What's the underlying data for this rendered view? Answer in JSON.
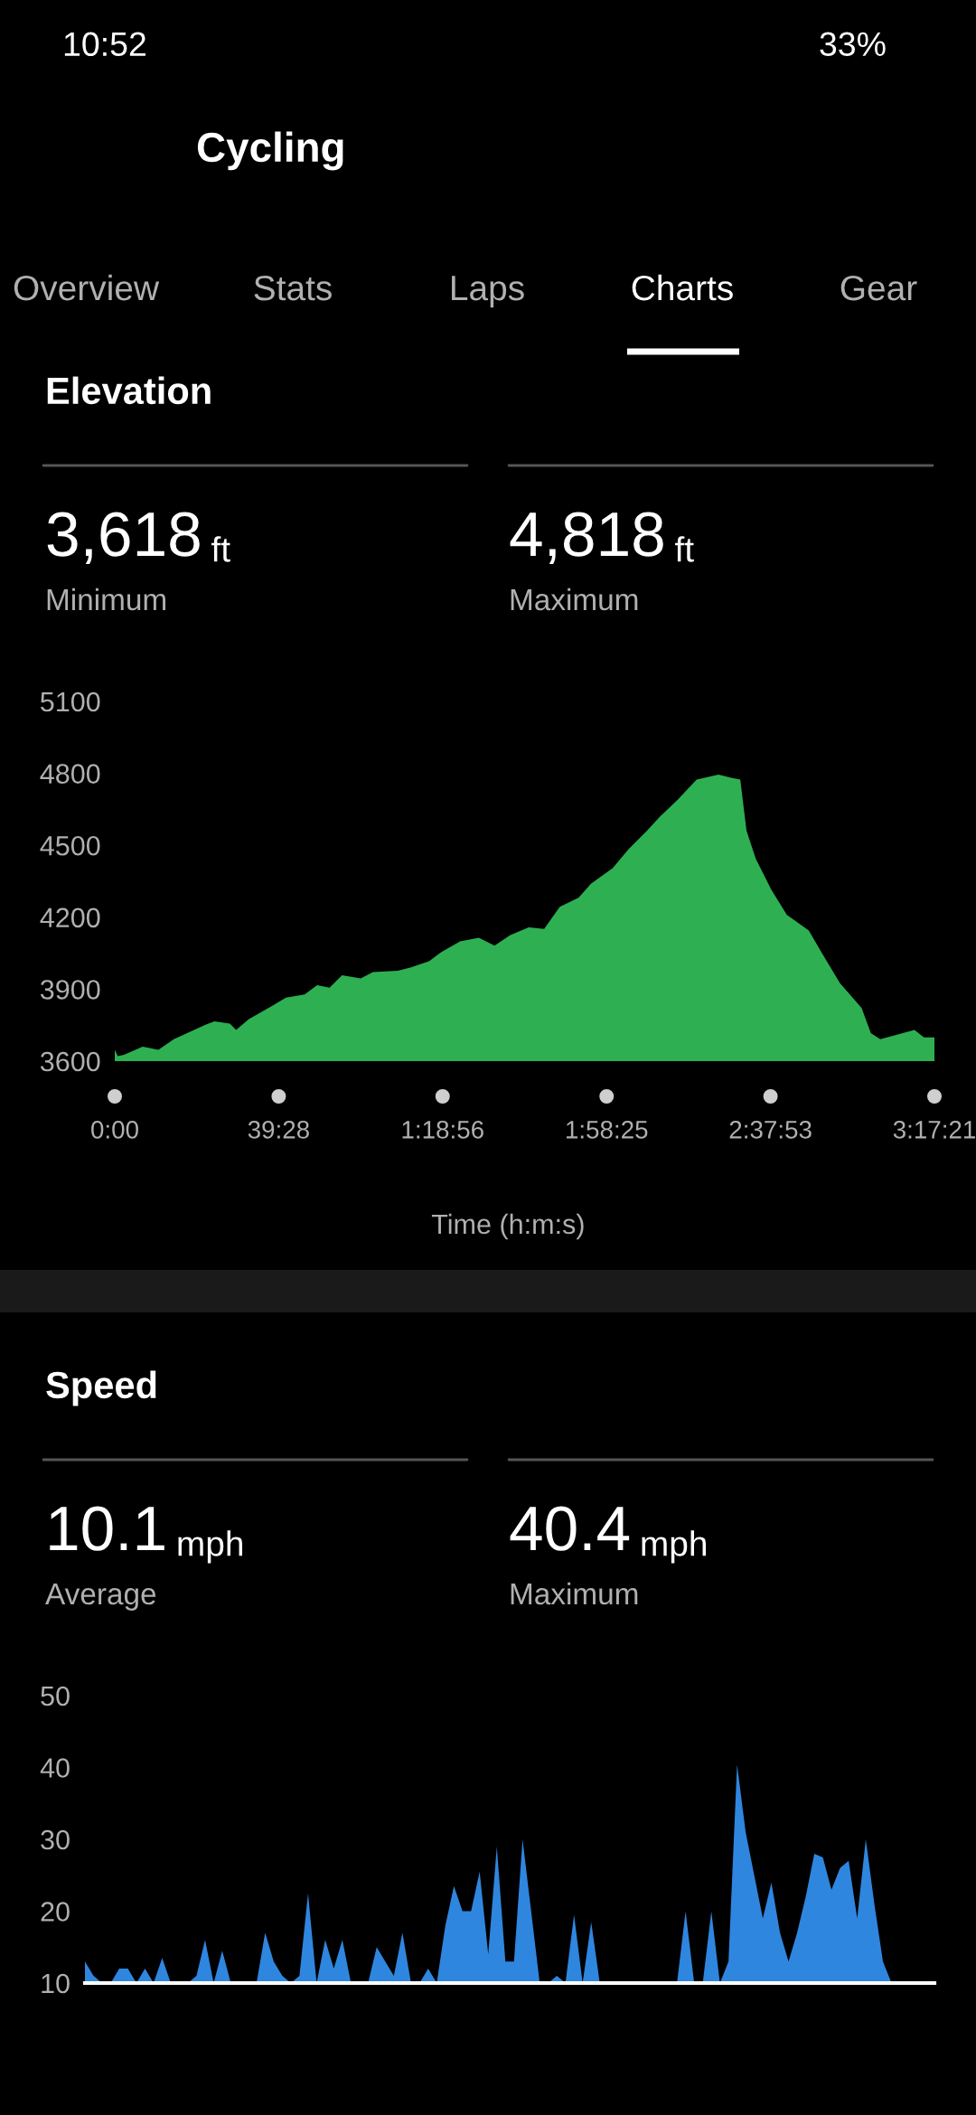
{
  "chart_data": [
    {
      "type": "other",
      "annotations": [
        "10:52",
        "33%",
        "Cycling",
        "Overview",
        "Stats",
        "Laps",
        "Charts",
        "Gear"
      ]
    },
    {
      "type": "area",
      "title": "Elevation",
      "annotations": [
        "3,618 ft",
        "Minimum",
        "4,818 ft",
        "Maximum"
      ],
      "xlabel": "Time (h:m:s)",
      "color": "#2eb052",
      "x": [
        0,
        0.72,
        2.22,
        6.72,
        10.5,
        14.22,
        21.72,
        24,
        27.72,
        29.22,
        32.22,
        38.22,
        41.22,
        45.72,
        48.72,
        51.72,
        54.72,
        59.22,
        62.16,
        68.16,
        71.16,
        75.66,
        78.66,
        83.16,
        87.66,
        91.44,
        95.16,
        99.66,
        103.38,
        107.16,
        111.66,
        114.66,
        119.88,
        123.66,
        128.16,
        131.16,
        135.6,
        140.1,
        145.38,
        148.38,
        150.6,
        152.1,
        154.32,
        158.1,
        161.82,
        167.1,
        170.1,
        174.6,
        179.82,
        182.04,
        184.32,
        192.54,
        194.82,
        197.35
      ],
      "values": [
        3647,
        3621,
        3626,
        3660,
        3647,
        3691,
        3751,
        3766,
        3756,
        3730,
        3774,
        3834,
        3865,
        3878,
        3917,
        3906,
        3958,
        3945,
        3971,
        3977,
        3990,
        4016,
        4055,
        4099,
        4114,
        4081,
        4125,
        4158,
        4151,
        4244,
        4281,
        4340,
        4405,
        4483,
        4561,
        4618,
        4691,
        4774,
        4795,
        4782,
        4774,
        4561,
        4444,
        4314,
        4210,
        4145,
        4055,
        3925,
        3821,
        3717,
        3691,
        3730,
        3699,
        3699
      ],
      "xlim": [
        0,
        197.35
      ],
      "xticks": [
        {
          "value": 0,
          "label": "0:00"
        },
        {
          "value": 39.467,
          "label": "39:28"
        },
        {
          "value": 78.933,
          "label": "1:18:56"
        },
        {
          "value": 118.417,
          "label": "1:58:25"
        },
        {
          "value": 157.883,
          "label": "2:37:53"
        },
        {
          "value": 197.35,
          "label": "3:17:21"
        }
      ],
      "ylim": [
        3600,
        5100
      ],
      "yticks": [
        3600,
        3900,
        4200,
        4500,
        4800,
        5100
      ]
    },
    {
      "type": "area",
      "title": "Speed",
      "annotations": [
        "10.1 mph",
        "Average",
        "40.4 mph",
        "Maximum"
      ],
      "color": "#2f86df",
      "categories": [
        null,
        null,
        null,
        null,
        null,
        null,
        null,
        null,
        null,
        null,
        null,
        null,
        null,
        null,
        null,
        null,
        null,
        null,
        null,
        null,
        null,
        null,
        null,
        null,
        null,
        null,
        null,
        null,
        null,
        null,
        null,
        null,
        null,
        null,
        null,
        null,
        null,
        null,
        null,
        null,
        null,
        null,
        null,
        null,
        null,
        null,
        null,
        null,
        null,
        null,
        null,
        null,
        null,
        null,
        null,
        null,
        null,
        null,
        null,
        null,
        null,
        null,
        null,
        null,
        null,
        null,
        null,
        null,
        null,
        null,
        null,
        null,
        null,
        null,
        null,
        null,
        null,
        null,
        null,
        null,
        null,
        null,
        null,
        null,
        null,
        null,
        null,
        null,
        null,
        null,
        null,
        null,
        null,
        null,
        null,
        null,
        null,
        null,
        null,
        null
      ],
      "values": [
        13,
        11,
        10,
        10,
        12,
        12,
        10,
        12,
        10,
        13.5,
        10,
        10,
        10,
        11,
        16,
        10,
        14.5,
        10,
        10,
        10,
        10,
        17,
        13,
        11,
        10,
        11,
        22.5,
        10,
        16,
        12,
        16,
        10,
        10,
        10,
        15,
        13,
        11,
        17,
        10,
        10,
        12,
        10,
        18,
        23.5,
        20,
        20,
        25.5,
        14,
        29,
        13,
        13,
        30,
        20,
        10,
        10,
        11,
        10,
        19.5,
        10,
        18.5,
        10,
        10,
        10,
        10,
        10,
        10,
        10,
        10,
        10,
        10,
        20,
        10,
        10,
        20,
        10,
        13,
        40.4,
        31,
        25,
        19,
        24,
        17,
        13,
        17,
        22,
        28,
        27.5,
        23,
        26,
        27,
        19,
        30,
        21,
        13,
        10,
        10,
        10,
        10,
        10,
        10
      ],
      "ylim": [
        10,
        50
      ],
      "yticks": [
        10,
        20,
        30,
        40,
        50
      ],
      "tick_labels": "y"
    }
  ]
}
